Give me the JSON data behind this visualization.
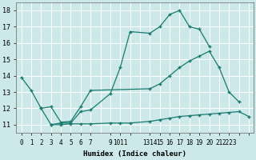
{
  "bg_color": "#cce8e8",
  "grid_color": "#ffffff",
  "line_color": "#1a7a6e",
  "xlabel": "Humidex (Indice chaleur)",
  "xlim": [
    -0.5,
    23.5
  ],
  "ylim": [
    10.5,
    18.5
  ],
  "xtick_positions": [
    0,
    1,
    2,
    3,
    4,
    5,
    6,
    7,
    9,
    10,
    11,
    13,
    14,
    15,
    16,
    17,
    18,
    19,
    20,
    21,
    22,
    23
  ],
  "xtick_labels": [
    "0",
    "1",
    "2",
    "3",
    "4",
    "5",
    "6",
    "7",
    "9",
    "1011",
    "",
    "1314",
    "15",
    "16",
    "17",
    "18",
    "19",
    "20",
    "21",
    "2223",
    "",
    ""
  ],
  "yticks": [
    11,
    12,
    13,
    14,
    15,
    16,
    17,
    18
  ],
  "series": [
    {
      "x": [
        0,
        1,
        2,
        3,
        4,
        5,
        6,
        7,
        9,
        10,
        11,
        13,
        14,
        15,
        16,
        17,
        18,
        19
      ],
      "y": [
        13.9,
        13.1,
        12.0,
        11.0,
        11.1,
        11.1,
        11.8,
        11.9,
        12.9,
        14.5,
        16.7,
        16.6,
        17.0,
        17.75,
        18.0,
        17.0,
        16.85,
        15.8
      ]
    },
    {
      "x": [
        2,
        3,
        4,
        5,
        6,
        7,
        13,
        14,
        15,
        16,
        17,
        18,
        19,
        20,
        21,
        22
      ],
      "y": [
        12.0,
        12.1,
        11.15,
        11.2,
        12.1,
        13.1,
        13.2,
        13.5,
        14.0,
        14.5,
        14.9,
        15.2,
        15.5,
        14.5,
        13.0,
        12.4
      ]
    },
    {
      "x": [
        3,
        4,
        5,
        6,
        7,
        9,
        10,
        11,
        13,
        14,
        15,
        16,
        17,
        18,
        19,
        20,
        21,
        22,
        23
      ],
      "y": [
        11.0,
        11.0,
        11.05,
        11.05,
        11.05,
        11.1,
        11.1,
        11.1,
        11.2,
        11.3,
        11.4,
        11.5,
        11.55,
        11.6,
        11.65,
        11.7,
        11.75,
        11.8,
        11.5
      ]
    }
  ]
}
